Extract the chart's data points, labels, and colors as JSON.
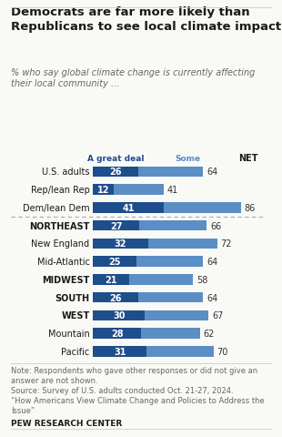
{
  "title": "Democrats are far more likely than\nRepublicans to see local climate impact",
  "subtitle": "% who say global climate change is currently affecting\ntheir local community ...",
  "col_header_great_deal": "A great deal",
  "col_header_some": "Some",
  "col_header_net": "NET",
  "categories": [
    "U.S. adults",
    "Rep/lean Rep",
    "Dem/lean Dem",
    "NORTHEAST",
    "New England",
    "Mid-Atlantic",
    "MIDWEST",
    "SOUTH",
    "WEST",
    "Mountain",
    "Pacific"
  ],
  "bold_categories": [
    "NORTHEAST",
    "MIDWEST",
    "SOUTH",
    "WEST"
  ],
  "great_deal": [
    26,
    12,
    41,
    27,
    32,
    25,
    21,
    26,
    30,
    28,
    31
  ],
  "net": [
    64,
    41,
    86,
    66,
    72,
    64,
    58,
    64,
    67,
    62,
    70
  ],
  "color_dark": "#1f4e8c",
  "color_light": "#5b8ec4",
  "bar_height": 0.58,
  "note": "Note: Respondents who gave other responses or did not give an\nanswer are not shown.\nSource: Survey of U.S. adults conducted Oct. 21-27, 2024.\n“How Americans View Climate Change and Policies to Address the\nIssue”",
  "footer": "PEW RESEARCH CENTER",
  "separator_after_index": 2,
  "background_color": "#f9f9f6",
  "title_color": "#1a1a1a",
  "subtitle_color": "#666666",
  "note_color": "#666666",
  "header_color_great_deal": "#1f4e8c",
  "header_color_some": "#5b8ec4"
}
